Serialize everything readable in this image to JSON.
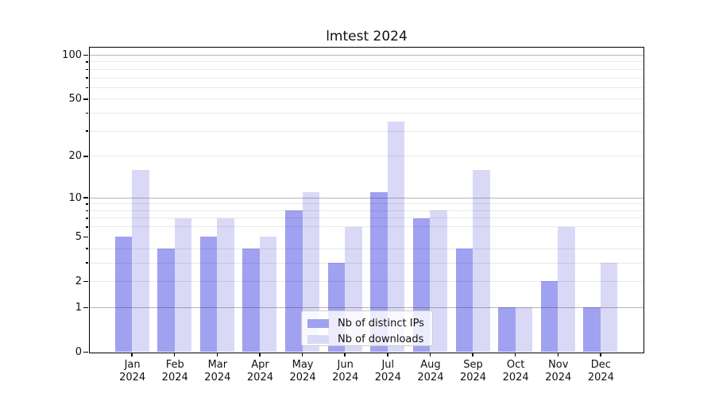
{
  "chart_data": {
    "type": "bar",
    "title": "lmtest 2024",
    "categories": [
      "Jan 2024",
      "Feb 2024",
      "Mar 2024",
      "Apr 2024",
      "May 2024",
      "Jun 2024",
      "Jul 2024",
      "Aug 2024",
      "Sep 2024",
      "Oct 2024",
      "Nov 2024",
      "Dec 2024"
    ],
    "series": [
      {
        "name": "Nb of distinct IPs",
        "color": "#a1a1f1",
        "values": [
          5,
          4,
          5,
          4,
          8,
          3,
          11,
          7,
          4,
          1,
          2,
          1
        ]
      },
      {
        "name": "Nb of downloads",
        "color": "#d9d9f7",
        "values": [
          16,
          7,
          7,
          5,
          11,
          6,
          35,
          8,
          16,
          1,
          6,
          3
        ]
      }
    ],
    "xlabel": "",
    "ylabel": "",
    "y_scale": "log1p",
    "ylim": [
      0,
      113
    ],
    "y_ticks_labeled": [
      0,
      1,
      2,
      5,
      10,
      20,
      50,
      100
    ],
    "y_gridlines_major": [
      1,
      10,
      100
    ],
    "y_gridlines_minor": [
      2,
      3,
      4,
      6,
      7,
      8,
      9,
      20,
      30,
      40,
      50,
      60,
      70,
      80,
      90
    ],
    "y_minor_tickmarks": [
      3,
      4,
      6,
      7,
      8,
      9,
      30,
      40,
      60,
      70,
      80,
      90
    ],
    "grid": "on",
    "legend_position": "lower center"
  },
  "colors": {
    "series_ips": "#a1a1f1",
    "series_downloads": "#d9d9f7",
    "grid_major": "#b0b0b0",
    "grid_minor": "#e8e8e8",
    "spine": "#000000",
    "background": "#ffffff"
  }
}
